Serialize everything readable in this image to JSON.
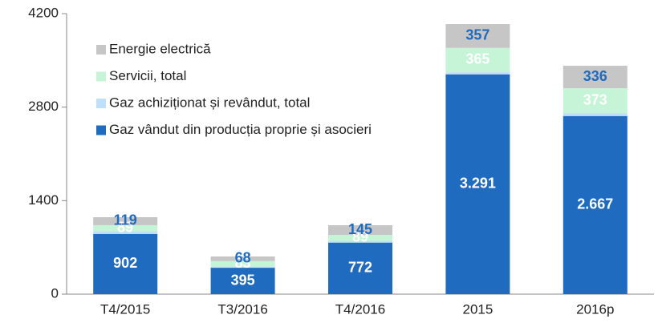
{
  "chart_data": {
    "type": "stacked_bar",
    "categories": [
      "T4/2015",
      "T3/2016",
      "T4/2016",
      "2015",
      "2016p"
    ],
    "series": [
      {
        "name": "Gaz vândut din producția proprie și asocieri",
        "color": "#1f6bbf",
        "label_color": "#ffffff",
        "values": [
          902,
          395,
          772,
          3291,
          2667
        ],
        "value_labels": [
          "902",
          "395",
          "772",
          "3.291",
          "2.667"
        ]
      },
      {
        "name": "Gaz achiziționat și revândut, total",
        "color": "#bfe0f8",
        "values": [
          42,
          18,
          26,
          31,
          44
        ]
      },
      {
        "name": "Servicii, total",
        "color": "#c6f4d6",
        "label_color": "#ffffff",
        "values": [
          89,
          83,
          89,
          365,
          373
        ]
      },
      {
        "name": "Energie electrică",
        "color": "#c6c6c6",
        "label_color": "#1f6bbf",
        "values": [
          119,
          68,
          145,
          357,
          336
        ]
      }
    ],
    "ylim": [
      0,
      4200
    ],
    "yticks": [
      0,
      1400,
      2800,
      4200
    ],
    "legend": "upper left"
  }
}
